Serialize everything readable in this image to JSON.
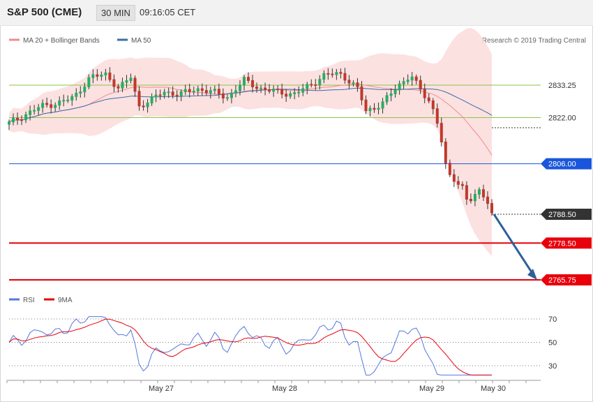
{
  "header": {
    "title": "S&P 500 (CME)",
    "timeframe": "30 MIN",
    "time": "09:16:05 CET"
  },
  "legend": {
    "bollinger_label": "MA 20 + Bollinger Bands",
    "ma50_label": "MA 50",
    "rsi_label": "RSI",
    "rsi_ma_label": "9MA"
  },
  "copyright": "Research © 2019 Trading Central",
  "colors": {
    "up": "#27ae60",
    "down": "#c0392b",
    "bollinger_fill": "#fbd9d9",
    "ma20": "#f28b8b",
    "ma50": "#3a6ea5",
    "support": "#e8000b",
    "resistance_line": "#8bc34a",
    "pivot": "#1a56db",
    "rsi": "#5577dd",
    "rsi_ma": "#e8000b",
    "forecast_arrow": "#2d5f9a"
  },
  "chart_data": [
    {
      "type": "candlestick",
      "ylim": [
        2758,
        2845
      ],
      "x_ticks": [
        "May 27",
        "May 28",
        "May 29",
        "May 30"
      ],
      "levels": [
        {
          "value": 2833.25,
          "label": "2833.25",
          "style": "resistance"
        },
        {
          "value": 2822.0,
          "label": "2822.00",
          "style": "resistance"
        },
        {
          "value": 2806.0,
          "label": "2806.00",
          "style": "pivot"
        },
        {
          "value": 2788.5,
          "label": "2788.50",
          "style": "last"
        },
        {
          "value": 2778.5,
          "label": "2778.50",
          "style": "support"
        },
        {
          "value": 2765.75,
          "label": "2765.75",
          "style": "support"
        }
      ],
      "forecast": {
        "from": 2788.5,
        "to": 2765.75
      },
      "series": [
        {
          "name": "MA 20 + Bollinger Bands"
        },
        {
          "name": "MA 50"
        }
      ]
    },
    {
      "type": "line",
      "ylim": [
        20,
        80
      ],
      "y_ticks": [
        "70",
        "50",
        "30"
      ],
      "series": [
        {
          "name": "RSI"
        },
        {
          "name": "9MA"
        }
      ]
    }
  ]
}
